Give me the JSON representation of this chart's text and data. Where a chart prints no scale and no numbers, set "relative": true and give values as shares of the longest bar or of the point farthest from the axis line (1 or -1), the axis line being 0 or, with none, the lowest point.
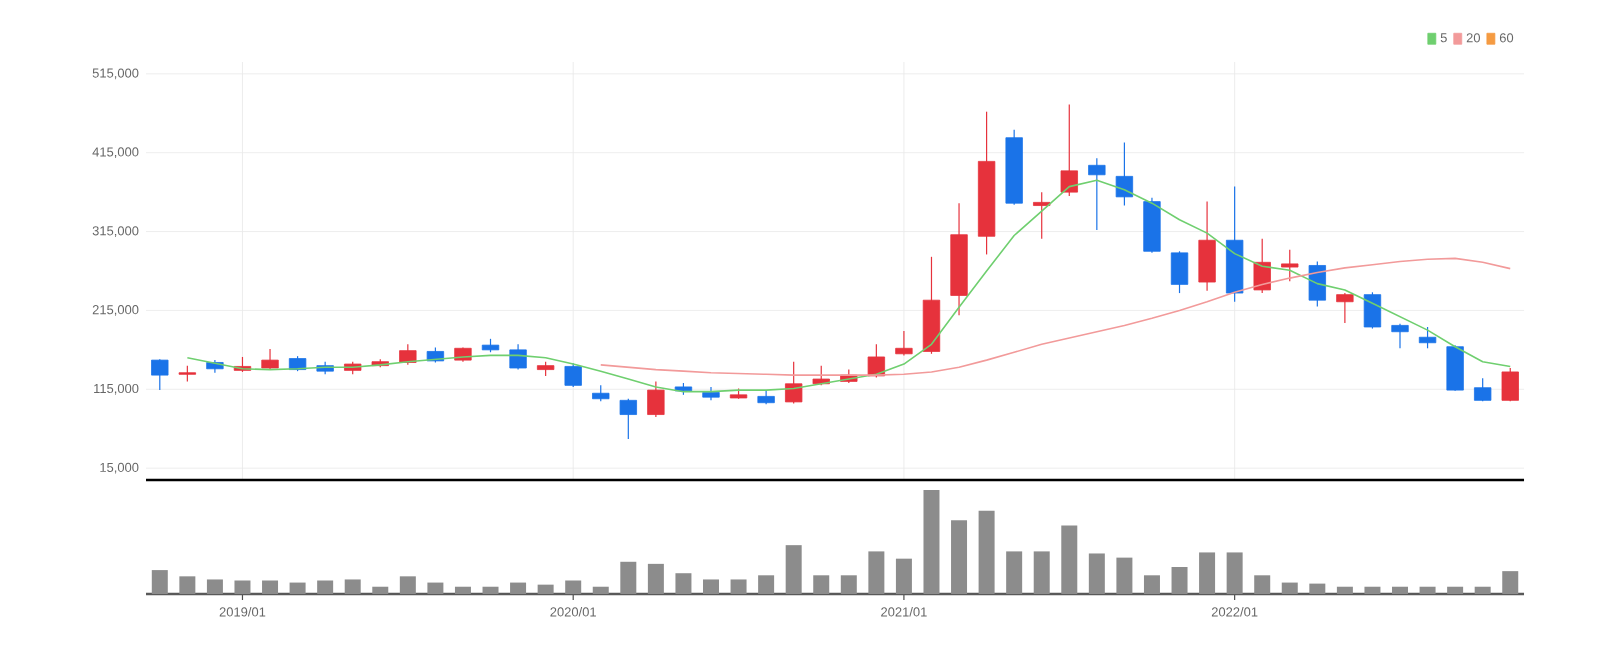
{
  "chart_data": [
    {
      "type": "candlestick",
      "categories": [
        null,
        null,
        null,
        "2019/01",
        null,
        null,
        null,
        null,
        null,
        null,
        null,
        null,
        null,
        null,
        null,
        "2020/01",
        null,
        null,
        null,
        null,
        null,
        null,
        null,
        null,
        null,
        null,
        null,
        "2021/01",
        null,
        null,
        null,
        null,
        null,
        null,
        null,
        null,
        null,
        null,
        null,
        "2022/01",
        null,
        null,
        null,
        null,
        null,
        null,
        null,
        null,
        null,
        null
      ],
      "ohlc": [
        [
          152000,
          153000,
          114000,
          133000
        ],
        [
          134000,
          145000,
          125000,
          136000
        ],
        [
          149000,
          152000,
          136000,
          141000
        ],
        [
          139000,
          156000,
          137000,
          144000
        ],
        [
          142000,
          166000,
          140000,
          152000
        ],
        [
          154000,
          157000,
          138000,
          140000
        ],
        [
          145000,
          150000,
          134000,
          138000
        ],
        [
          139000,
          150000,
          134000,
          147000
        ],
        [
          145000,
          153000,
          143000,
          150000
        ],
        [
          149000,
          172000,
          146000,
          164000
        ],
        [
          163000,
          168000,
          149000,
          151000
        ],
        [
          152000,
          168000,
          150000,
          167000
        ],
        [
          171000,
          179000,
          162000,
          165000
        ],
        [
          165000,
          172000,
          140000,
          142000
        ],
        [
          140000,
          150000,
          132000,
          145000
        ],
        [
          144000,
          148000,
          118000,
          120000
        ],
        [
          110000,
          120000,
          100000,
          103000
        ],
        [
          101000,
          103000,
          52000,
          83000
        ],
        [
          83000,
          125000,
          80000,
          114000
        ],
        [
          118000,
          123000,
          108000,
          113000
        ],
        [
          111000,
          118000,
          101000,
          105000
        ],
        [
          104000,
          116000,
          103000,
          108000
        ],
        [
          106000,
          113000,
          96000,
          98000
        ],
        [
          99000,
          150000,
          97000,
          122000
        ],
        [
          122000,
          145000,
          120000,
          128000
        ],
        [
          125000,
          140000,
          123000,
          133000
        ],
        [
          132000,
          172000,
          130000,
          156000
        ],
        [
          160000,
          189000,
          158000,
          167000
        ],
        [
          163000,
          283000,
          160000,
          228000
        ],
        [
          234000,
          351000,
          209000,
          311000
        ],
        [
          309000,
          467000,
          286000,
          404000
        ],
        [
          434000,
          444000,
          349000,
          351000
        ],
        [
          348000,
          365000,
          306000,
          352000
        ],
        [
          365000,
          476000,
          360000,
          392000
        ],
        [
          399000,
          408000,
          317000,
          387000
        ],
        [
          385000,
          428000,
          348000,
          359000
        ],
        [
          353000,
          358000,
          288000,
          290000
        ],
        [
          288000,
          290000,
          237000,
          248000
        ],
        [
          251000,
          353000,
          240000,
          304000
        ],
        [
          304000,
          372000,
          226000,
          237000
        ],
        [
          241000,
          306000,
          237000,
          276000
        ],
        [
          270000,
          292000,
          252000,
          274000
        ],
        [
          272000,
          277000,
          220000,
          228000
        ],
        [
          226000,
          237000,
          199000,
          235000
        ],
        [
          235000,
          238000,
          192000,
          194000
        ],
        [
          196000,
          198000,
          167000,
          188000
        ],
        [
          181000,
          194000,
          167000,
          174000
        ],
        [
          169000,
          171000,
          113000,
          114000
        ],
        [
          117000,
          129000,
          100000,
          101000
        ],
        [
          101000,
          142000,
          100000,
          137000
        ]
      ],
      "colors": [
        "#1a73e8",
        "#e6323c",
        "#1a73e8",
        "#e6323c",
        "#e6323c",
        "#1a73e8",
        "#1a73e8",
        "#e6323c",
        "#e6323c",
        "#e6323c",
        "#1a73e8",
        "#e6323c",
        "#1a73e8",
        "#1a73e8",
        "#e6323c",
        "#1a73e8",
        "#1a73e8",
        "#1a73e8",
        "#e6323c",
        "#1a73e8",
        "#1a73e8",
        "#e6323c",
        "#1a73e8",
        "#e6323c",
        "#e6323c",
        "#e6323c",
        "#e6323c",
        "#e6323c",
        "#e6323c",
        "#e6323c",
        "#e6323c",
        "#1a73e8",
        "#e6323c",
        "#e6323c",
        "#1a73e8",
        "#1a73e8",
        "#1a73e8",
        "#1a73e8",
        "#e6323c",
        "#1a73e8",
        "#e6323c",
        "#e6323c",
        "#1a73e8",
        "#e6323c",
        "#1a73e8",
        "#1a73e8",
        "#1a73e8",
        "#1a73e8",
        "#1a73e8",
        "#e6323c"
      ],
      "series": [
        {
          "name": "5",
          "type": "line",
          "color": "#6fcf6f",
          "values": [
            null,
            155000,
            148000,
            141000,
            140000,
            141000,
            143000,
            143000,
            146000,
            150000,
            153000,
            156000,
            158000,
            158000,
            155000,
            147000,
            138000,
            128000,
            118000,
            112000,
            112000,
            114000,
            114000,
            116000,
            122000,
            128000,
            134000,
            147000,
            172000,
            219000,
            265000,
            310000,
            341000,
            372000,
            380000,
            368000,
            351000,
            330000,
            313000,
            287000,
            271000,
            266000,
            249000,
            241000,
            224000,
            207000,
            190000,
            169000,
            150000,
            144000
          ]
        },
        {
          "name": "20",
          "type": "line",
          "color": "#f29a9a",
          "values": [
            null,
            null,
            null,
            null,
            null,
            null,
            null,
            null,
            null,
            null,
            null,
            null,
            null,
            null,
            null,
            null,
            146000,
            143000,
            140000,
            138000,
            136000,
            135000,
            134000,
            133000,
            133000,
            133000,
            133000,
            134000,
            137000,
            143000,
            152000,
            162000,
            172000,
            180000,
            188000,
            196000,
            205000,
            215000,
            226000,
            238000,
            248000,
            256000,
            263000,
            269000,
            273000,
            277000,
            280000,
            281000,
            276000,
            268000
          ]
        },
        {
          "name": "60",
          "type": "line",
          "color": "#f59b42",
          "values": [
            null,
            null,
            null,
            null,
            null,
            null,
            null,
            null,
            null,
            null,
            null,
            null,
            null,
            null,
            null,
            null,
            null,
            null,
            null,
            null,
            null,
            null,
            null,
            null,
            null,
            null,
            null,
            null,
            null,
            null,
            null,
            null,
            null,
            null,
            null,
            null,
            null,
            null,
            null,
            null,
            null,
            null,
            null,
            null,
            null,
            null,
            null,
            null,
            null,
            null
          ]
        }
      ],
      "ylim": [
        0,
        530000
      ],
      "yticks": [
        {
          "value": 15000,
          "label": "15,000"
        },
        {
          "value": 115000,
          "label": "115,000"
        },
        {
          "value": 215000,
          "label": "215,000"
        },
        {
          "value": 315000,
          "label": "315,000"
        },
        {
          "value": 415000,
          "label": "415,000"
        },
        {
          "value": 515000,
          "label": "515,000"
        }
      ],
      "grid": true,
      "legend": "top right",
      "tick_labels": "y"
    },
    {
      "type": "bar",
      "categories": [
        null,
        null,
        null,
        "2019/01",
        null,
        null,
        null,
        null,
        null,
        null,
        null,
        null,
        null,
        null,
        null,
        "2020/01",
        null,
        null,
        null,
        null,
        null,
        null,
        null,
        null,
        null,
        null,
        null,
        "2021/01",
        null,
        null,
        null,
        null,
        null,
        null,
        null,
        null,
        null,
        null,
        null,
        "2022/01",
        null,
        null,
        null,
        null,
        null,
        null,
        null,
        null,
        null,
        null
      ],
      "values": [
        0.23,
        0.17,
        0.14,
        0.13,
        0.13,
        0.11,
        0.13,
        0.14,
        0.07,
        0.17,
        0.11,
        0.07,
        0.07,
        0.11,
        0.09,
        0.13,
        0.07,
        0.31,
        0.29,
        0.2,
        0.14,
        0.14,
        0.18,
        0.47,
        0.18,
        0.18,
        0.41,
        0.34,
        1,
        0.71,
        0.8,
        0.41,
        0.41,
        0.66,
        0.39,
        0.35,
        0.18,
        0.26,
        0.4,
        0.4,
        0.18,
        0.11,
        0.1,
        0.07,
        0.07,
        0.07,
        0.07,
        0.07,
        0.07,
        0.22
      ],
      "color": "#8c8c8c",
      "relative": true,
      "tick_labels": "x"
    }
  ]
}
